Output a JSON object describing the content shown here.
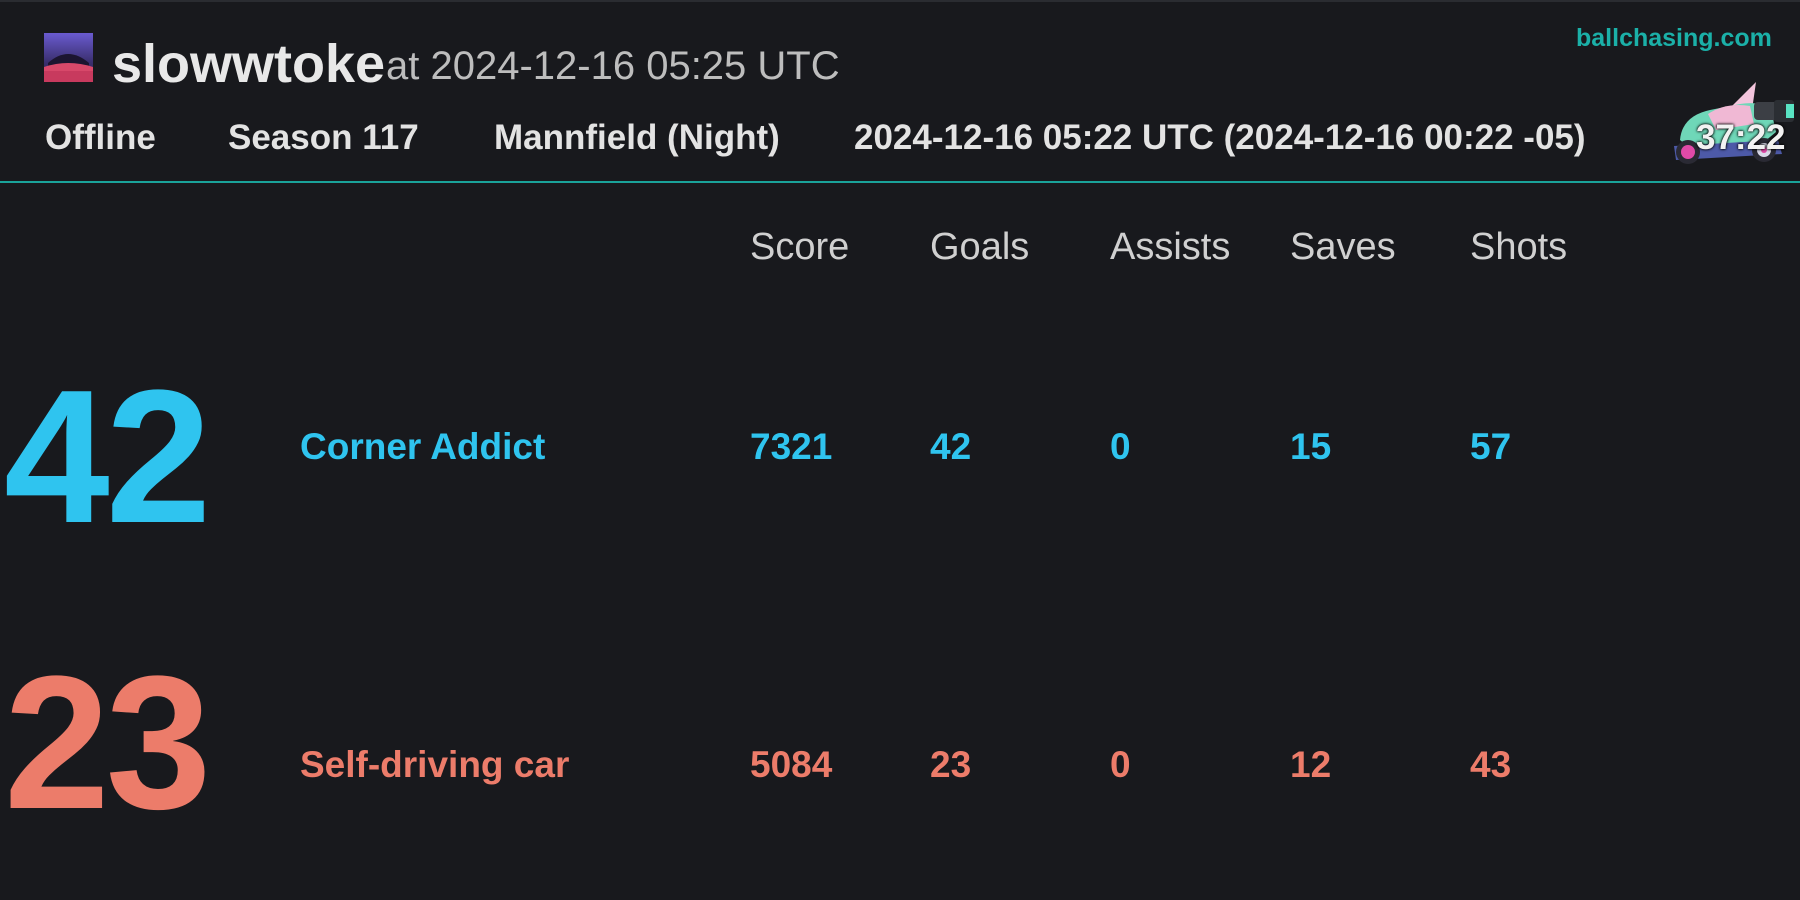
{
  "header": {
    "player_name": "slowwtoke",
    "player_time": "at 2024-12-16 05:25 UTC",
    "site": "ballchasing.com",
    "playlist": "Offline",
    "season": "Season 117",
    "map": "Mannfield (Night)",
    "match_time": "2024-12-16 05:22 UTC (2024-12-16 00:22 -05)",
    "duration": "37:22"
  },
  "columns": [
    "Score",
    "Goals",
    "Assists",
    "Saves",
    "Shots"
  ],
  "teams": [
    {
      "goals_big": "42",
      "name": "Corner Addict",
      "score": "7321",
      "goals": "42",
      "assists": "0",
      "saves": "15",
      "shots": "57",
      "color": "#2fc4ef"
    },
    {
      "goals_big": "23",
      "name": "Self-driving car",
      "score": "5084",
      "goals": "23",
      "assists": "0",
      "saves": "12",
      "shots": "43",
      "color": "#ec7c6a"
    }
  ],
  "icons": {
    "avatar": "player-avatar-icon",
    "car": "car-render-icon"
  }
}
